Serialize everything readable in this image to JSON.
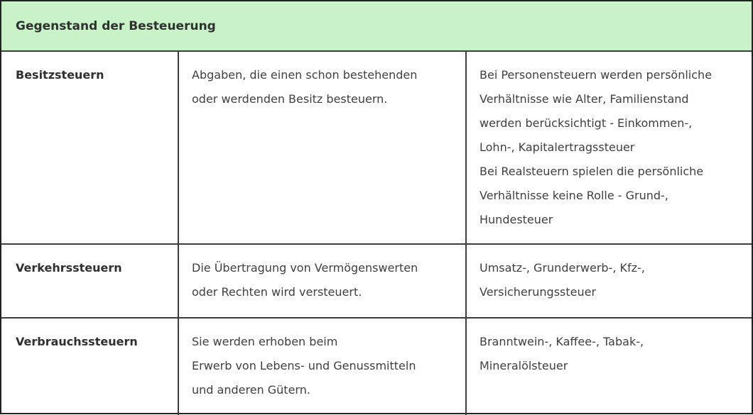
{
  "colors": {
    "header_bg": "#c9f2c9",
    "border_outer": "#222222",
    "border_inner": "#3d3d3d",
    "text_body": "#3f3f3f",
    "text_bold": "#303030"
  },
  "table": {
    "header": "Gegenstand der Besteuerung",
    "rows": [
      {
        "term": "Besitzsteuern",
        "definition": "Abgaben, die einen schon bestehenden\noder werdenden Besitz besteuern.",
        "examples": "Bei Personensteuern werden persönliche\nVerhältnisse wie Alter, Familienstand\nwerden berücksichtigt - Einkommen-,\nLohn-, Kapitalertragssteuer\nBei Realsteuern spielen die persönliche\nVerhältnisse keine Rolle - Grund-,\nHundesteuer"
      },
      {
        "term": "Verkehrssteuern",
        "definition": "Die Übertragung von Vermögenswerten\noder Rechten wird versteuert.",
        "examples": "Umsatz-, Grunderwerb-, Kfz-,\nVersicherungssteuer"
      },
      {
        "term": "Verbrauchssteuern",
        "definition": "Sie werden erhoben beim\nErwerb von Lebens- und Genussmitteln\nund anderen Gütern.",
        "examples": "Branntwein-, Kaffee-, Tabak-,\nMineralölsteuer"
      }
    ]
  }
}
